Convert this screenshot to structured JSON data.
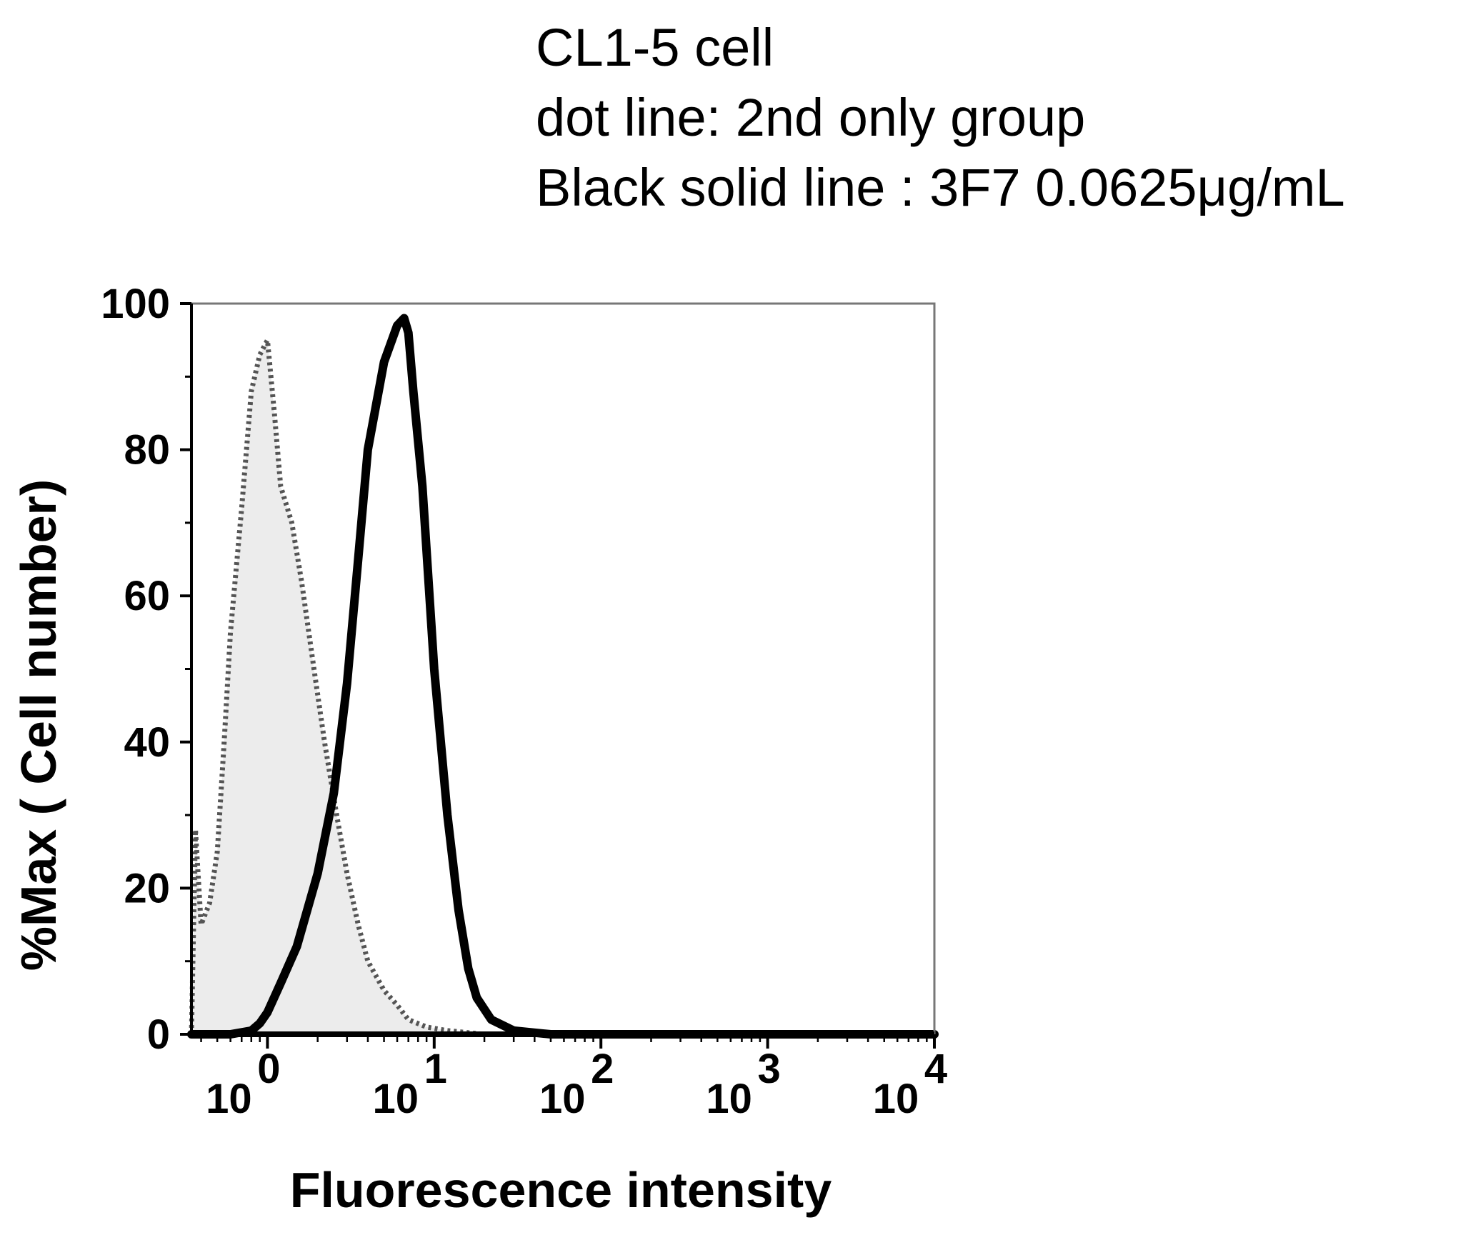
{
  "legend": {
    "line1": "CL1-5 cell",
    "line2": "dot line: 2nd only group",
    "line3": "Black solid line : 3F7 0.0625μg/mL"
  },
  "colors": {
    "fill": "#ececec",
    "line": "#000000",
    "dotted": "#555555",
    "frame": "#777777"
  },
  "chart_data": {
    "type": "area",
    "xlabel": "Fluorescence intensity",
    "ylabel": "%Max ( Cell number)",
    "xscale": "log",
    "xlim": [
      0.35,
      10000
    ],
    "ylim": [
      0,
      100
    ],
    "xticks": [
      {
        "value": 1,
        "base": "10",
        "exp": "0"
      },
      {
        "value": 10,
        "base": "10",
        "exp": "1"
      },
      {
        "value": 100,
        "base": "10",
        "exp": "2"
      },
      {
        "value": 1000,
        "base": "10",
        "exp": "3"
      },
      {
        "value": 10000,
        "base": "10",
        "exp": "4"
      }
    ],
    "yticks": [
      0,
      20,
      40,
      60,
      80,
      100
    ],
    "grid": false,
    "series": [
      {
        "name": "2nd only group",
        "style": "dotted",
        "filled": true,
        "x": [
          0.35,
          0.37,
          0.4,
          0.45,
          0.5,
          0.55,
          0.6,
          0.7,
          0.8,
          0.9,
          1.0,
          1.1,
          1.2,
          1.4,
          1.6,
          1.9,
          2.2,
          2.6,
          3.0,
          3.5,
          4.0,
          5.0,
          6.0,
          7.0,
          9.0,
          12.0,
          20.0,
          50.0,
          10000
        ],
        "y": [
          0,
          28,
          15,
          18,
          25,
          40,
          55,
          72,
          88,
          93,
          95,
          85,
          75,
          70,
          62,
          50,
          40,
          30,
          22,
          15,
          10,
          6,
          4,
          2,
          1,
          0.5,
          0,
          0,
          0
        ]
      },
      {
        "name": "3F7 0.0625μg/mL",
        "style": "solid",
        "filled": false,
        "x": [
          0.35,
          0.6,
          0.8,
          0.9,
          1.0,
          1.2,
          1.5,
          2.0,
          2.5,
          3.0,
          3.5,
          4.0,
          5.0,
          6.0,
          6.6,
          7.0,
          7.5,
          8.5,
          10.0,
          12.0,
          14.0,
          16.0,
          18.0,
          22.0,
          30.0,
          50.0,
          100.0,
          10000
        ],
        "y": [
          0,
          0,
          0.5,
          1.5,
          3,
          7,
          12,
          22,
          33,
          48,
          65,
          80,
          92,
          97,
          98,
          96,
          88,
          75,
          50,
          30,
          17,
          9,
          5,
          2,
          0.5,
          0,
          0,
          0
        ]
      }
    ]
  }
}
